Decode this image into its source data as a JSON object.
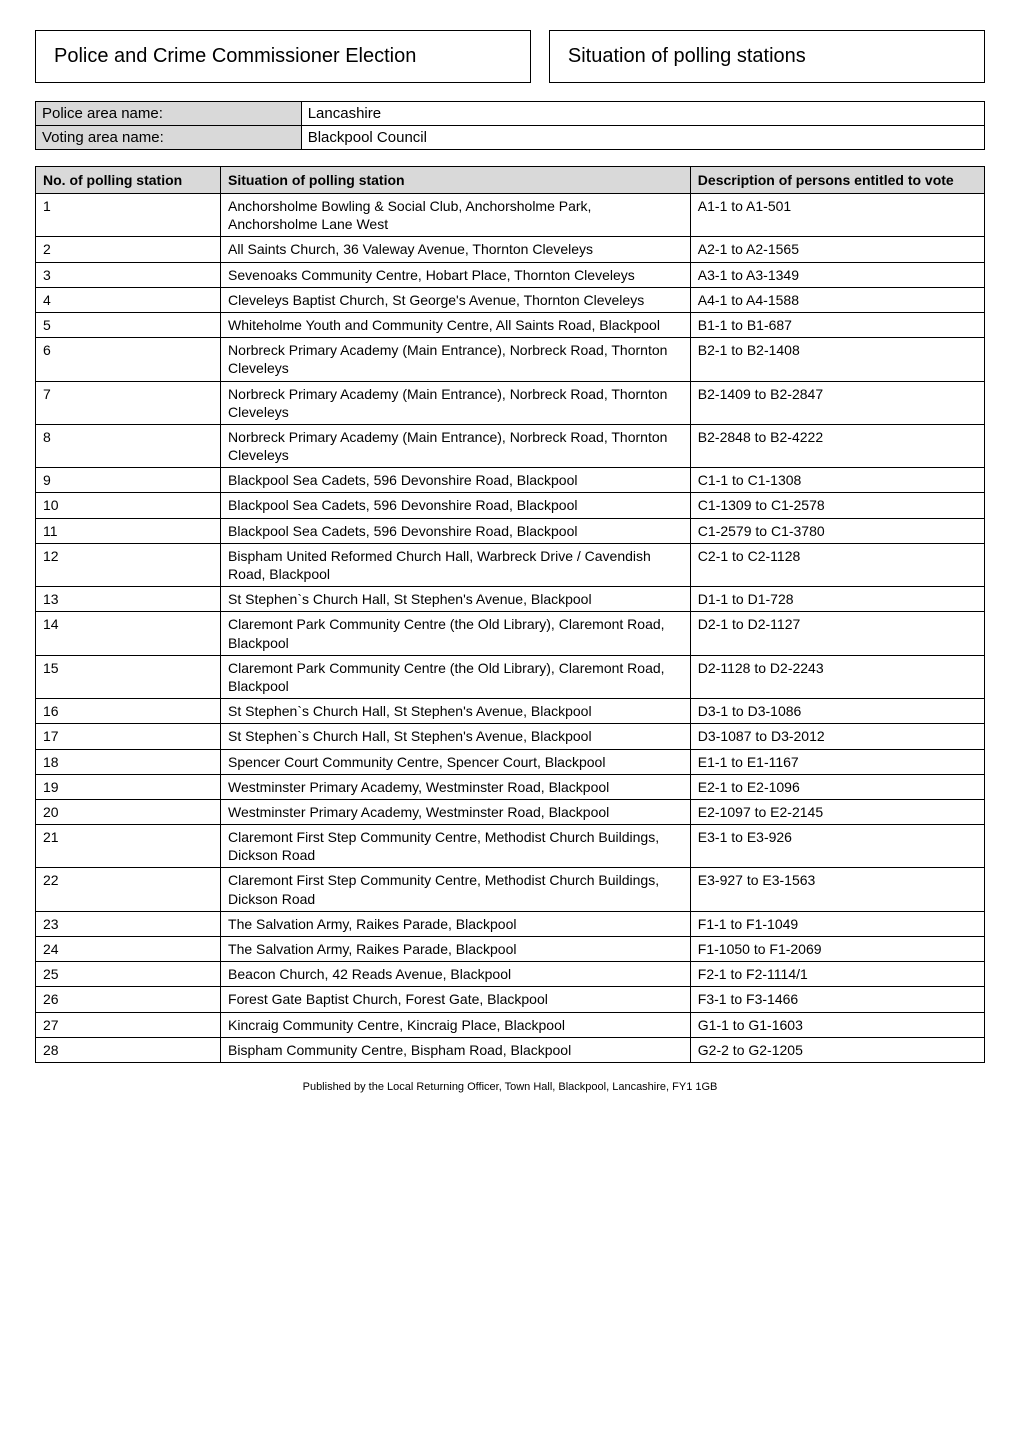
{
  "header": {
    "left": "Police and Crime Commissioner Election",
    "right": "Situation of polling stations"
  },
  "info": {
    "police_area_label": "Police area name:",
    "police_area_value": "Lancashire",
    "voting_area_label": "Voting area name:",
    "voting_area_value": "Blackpool Council"
  },
  "columns": {
    "c1": "No. of polling station",
    "c2": "Situation of polling station",
    "c3": "Description of persons entitled to vote"
  },
  "rows": [
    {
      "no": "1",
      "situation": "Anchorsholme Bowling & Social Club, Anchorsholme Park, Anchorsholme Lane West",
      "desc": "A1-1 to A1-501"
    },
    {
      "no": "2",
      "situation": "All Saints Church, 36 Valeway Avenue, Thornton Cleveleys",
      "desc": "A2-1 to A2-1565"
    },
    {
      "no": "3",
      "situation": "Sevenoaks Community Centre, Hobart Place, Thornton Cleveleys",
      "desc": "A3-1 to A3-1349"
    },
    {
      "no": "4",
      "situation": "Cleveleys Baptist Church, St George's Avenue, Thornton Cleveleys",
      "desc": "A4-1 to A4-1588"
    },
    {
      "no": "5",
      "situation": "Whiteholme Youth and Community Centre, All Saints Road, Blackpool",
      "desc": "B1-1 to B1-687"
    },
    {
      "no": "6",
      "situation": "Norbreck Primary Academy (Main Entrance), Norbreck Road, Thornton Cleveleys",
      "desc": "B2-1 to B2-1408"
    },
    {
      "no": "7",
      "situation": "Norbreck Primary Academy (Main Entrance), Norbreck Road, Thornton Cleveleys",
      "desc": "B2-1409 to B2-2847"
    },
    {
      "no": "8",
      "situation": "Norbreck Primary Academy (Main Entrance), Norbreck Road, Thornton Cleveleys",
      "desc": "B2-2848 to B2-4222"
    },
    {
      "no": "9",
      "situation": "Blackpool Sea Cadets, 596 Devonshire Road, Blackpool",
      "desc": "C1-1 to C1-1308"
    },
    {
      "no": "10",
      "situation": "Blackpool Sea Cadets, 596 Devonshire Road, Blackpool",
      "desc": "C1-1309 to C1-2578"
    },
    {
      "no": "11",
      "situation": "Blackpool Sea Cadets, 596 Devonshire Road, Blackpool",
      "desc": "C1-2579 to C1-3780"
    },
    {
      "no": "12",
      "situation": "Bispham United Reformed Church Hall, Warbreck Drive / Cavendish Road, Blackpool",
      "desc": "C2-1 to C2-1128"
    },
    {
      "no": "13",
      "situation": "St Stephen`s Church Hall, St Stephen's Avenue, Blackpool",
      "desc": "D1-1 to D1-728"
    },
    {
      "no": "14",
      "situation": "Claremont Park Community Centre (the Old Library), Claremont Road, Blackpool",
      "desc": "D2-1 to D2-1127"
    },
    {
      "no": "15",
      "situation": "Claremont Park Community Centre (the Old Library), Claremont Road, Blackpool",
      "desc": "D2-1128 to D2-2243"
    },
    {
      "no": "16",
      "situation": "St Stephen`s Church Hall, St Stephen's Avenue, Blackpool",
      "desc": "D3-1 to D3-1086"
    },
    {
      "no": "17",
      "situation": "St Stephen`s Church Hall, St Stephen's Avenue, Blackpool",
      "desc": "D3-1087 to D3-2012"
    },
    {
      "no": "18",
      "situation": "Spencer Court Community Centre, Spencer Court, Blackpool",
      "desc": "E1-1 to E1-1167"
    },
    {
      "no": "19",
      "situation": "Westminster Primary Academy, Westminster Road, Blackpool",
      "desc": "E2-1 to E2-1096"
    },
    {
      "no": "20",
      "situation": "Westminster Primary Academy, Westminster Road, Blackpool",
      "desc": "E2-1097 to E2-2145"
    },
    {
      "no": "21",
      "situation": "Claremont First Step Community Centre, Methodist Church Buildings, Dickson Road",
      "desc": "E3-1 to E3-926"
    },
    {
      "no": "22",
      "situation": "Claremont First Step Community Centre, Methodist Church Buildings, Dickson Road",
      "desc": "E3-927 to E3-1563"
    },
    {
      "no": "23",
      "situation": "The Salvation Army, Raikes Parade, Blackpool",
      "desc": "F1-1 to F1-1049"
    },
    {
      "no": "24",
      "situation": "The Salvation Army, Raikes Parade, Blackpool",
      "desc": "F1-1050 to F1-2069"
    },
    {
      "no": "25",
      "situation": "Beacon Church, 42 Reads Avenue, Blackpool",
      "desc": "F2-1 to F2-1114/1"
    },
    {
      "no": "26",
      "situation": "Forest Gate Baptist Church, Forest Gate, Blackpool",
      "desc": "F3-1 to F3-1466"
    },
    {
      "no": "27",
      "situation": "Kincraig Community Centre, Kincraig Place, Blackpool",
      "desc": "G1-1 to G1-1603"
    },
    {
      "no": "28",
      "situation": "Bispham Community Centre, Bispham Road, Blackpool",
      "desc": "G2-2 to G2-1205"
    }
  ],
  "footer": "Published by the Local Returning Officer, Town Hall, Blackpool, Lancashire, FY1 1GB"
}
